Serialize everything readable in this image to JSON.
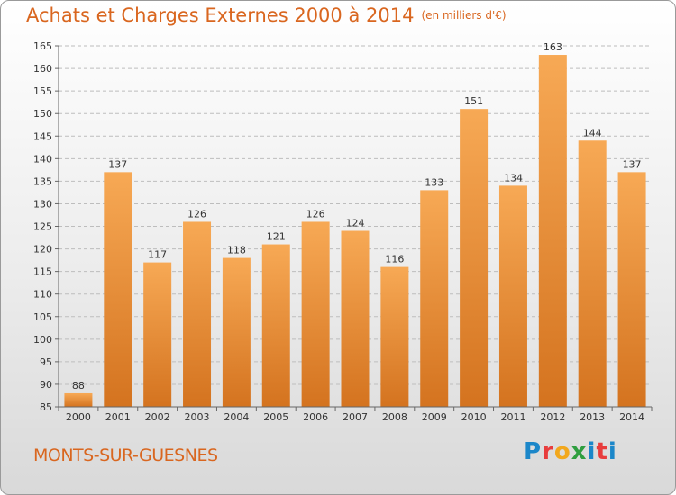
{
  "header": {
    "title": "Achats et Charges Externes 2000 à 2014",
    "unit": "(en milliers d'€)"
  },
  "footer": {
    "town": "MONTS-SUR-GUESNES",
    "brand": [
      "P",
      "r",
      "o",
      "x",
      "i",
      "t",
      "i"
    ]
  },
  "colors": {
    "accent": "#d9661f",
    "bar_light": "#f7a955",
    "bar_dark": "#d4731f",
    "grid": "#bdbdbd"
  },
  "chart_data": {
    "type": "bar",
    "categories": [
      "2000",
      "2001",
      "2002",
      "2003",
      "2004",
      "2005",
      "2006",
      "2007",
      "2008",
      "2009",
      "2010",
      "2011",
      "2012",
      "2013",
      "2014"
    ],
    "values": [
      88,
      137,
      117,
      126,
      118,
      121,
      126,
      124,
      116,
      133,
      151,
      134,
      163,
      144,
      137
    ],
    "title": "Achats et Charges Externes 2000 à 2014",
    "ylim": [
      85,
      165
    ],
    "yticks": [
      85,
      90,
      95,
      100,
      105,
      110,
      115,
      120,
      125,
      130,
      135,
      140,
      145,
      150,
      155,
      160,
      165
    ],
    "grid": true
  }
}
